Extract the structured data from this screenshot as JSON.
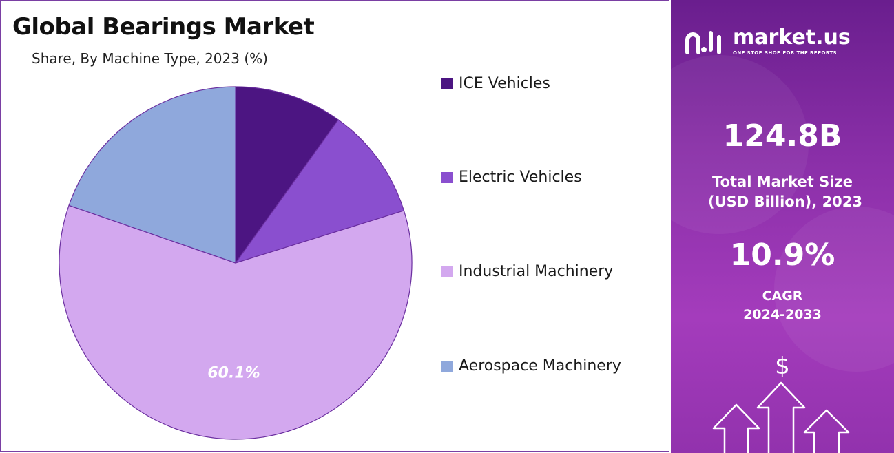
{
  "title": "Global Bearings Market",
  "subtitle": "Share, By Machine Type, 2023 (%)",
  "chart_data": {
    "type": "pie",
    "title": "Global Bearings Market",
    "subtitle": "Share, By Machine Type, 2023 (%)",
    "legend_position": "right",
    "series": [
      {
        "name": "ICE Vehicles",
        "value": 9.9,
        "color": "#4c1582"
      },
      {
        "name": "Electric Vehicles",
        "value": 10.3,
        "color": "#8a4fcf"
      },
      {
        "name": "Industrial Machinery",
        "value": 60.1,
        "color": "#d3a8ef"
      },
      {
        "name": "Aerospace Machinery",
        "value": 19.7,
        "color": "#8fa8dc"
      }
    ],
    "data_labels": [
      {
        "series": "Industrial Machinery",
        "text": "60.1%"
      }
    ]
  },
  "legend": {
    "items": [
      {
        "label": "ICE Vehicles",
        "color": "#4c1582"
      },
      {
        "label": "Electric Vehicles",
        "color": "#8a4fcf"
      },
      {
        "label": "Industrial Machinery",
        "color": "#d3a8ef"
      },
      {
        "label": "Aerospace Machinery",
        "color": "#8fa8dc"
      }
    ]
  },
  "sidebar": {
    "brand_name": "market.us",
    "brand_tagline": "ONE STOP SHOP FOR THE REPORTS",
    "market_size_value": "124.8B",
    "market_size_label_line1": "Total Market Size",
    "market_size_label_line2": "(USD Billion), 2023",
    "cagr_value": "10.9%",
    "cagr_label_line1": "CAGR",
    "cagr_label_line2": "2024-2033",
    "dollar_symbol": "$",
    "background_color": "#8a2fa8"
  },
  "icons": {
    "brand_logo": "market-us-logo-icon",
    "growth": "growth-arrows-icon"
  }
}
